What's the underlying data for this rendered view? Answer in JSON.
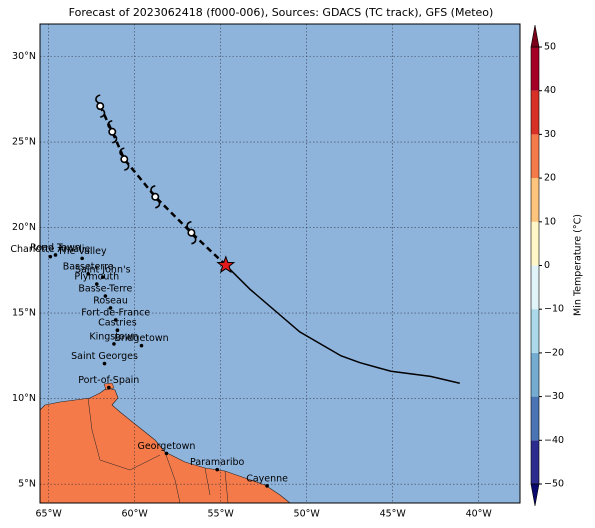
{
  "chart_data": {
    "type": "map",
    "title": "Forecast of 2023062418 (f000-006), Sources: GDACS (TC track), GFS (Meteo)",
    "xlim": [
      -65.5,
      -37.6
    ],
    "ylim": [
      3.9,
      31.9
    ],
    "xticks": [
      {
        "value": -65,
        "label": "65°W"
      },
      {
        "value": -60,
        "label": "60°W"
      },
      {
        "value": -55,
        "label": "55°W"
      },
      {
        "value": -50,
        "label": "50°W"
      },
      {
        "value": -45,
        "label": "45°W"
      },
      {
        "value": -40,
        "label": "40°W"
      }
    ],
    "yticks": [
      {
        "value": 5,
        "label": "5°N"
      },
      {
        "value": 10,
        "label": "10°N"
      },
      {
        "value": 15,
        "label": "15°N"
      },
      {
        "value": 20,
        "label": "20°N"
      },
      {
        "value": 25,
        "label": "25°N"
      },
      {
        "value": 30,
        "label": "30°N"
      }
    ],
    "grid": true,
    "ocean_color": "#8fb4dc",
    "land_color": "#f47a4a",
    "track": {
      "observed": {
        "lon": [
          -41.1,
          -42.8,
          -45.1,
          -46.9,
          -48.0,
          -49.2,
          -50.4,
          -53.3,
          -54.7
        ],
        "lat": [
          10.9,
          11.3,
          11.6,
          12.1,
          12.5,
          13.2,
          13.9,
          16.4,
          17.8
        ]
      },
      "forecast": {
        "lon": [
          -54.7,
          -56.7,
          -58.8,
          -60.6,
          -61.3,
          -62.0
        ],
        "lat": [
          17.8,
          19.7,
          21.8,
          24.0,
          25.6,
          27.1
        ]
      }
    },
    "cities": [
      {
        "name": "Road Town",
        "lon": -64.6,
        "lat": 18.4
      },
      {
        "name": "Charlotte Amalie",
        "lon": -64.9,
        "lat": 18.3
      },
      {
        "name": "The Valley",
        "lon": -63.05,
        "lat": 18.2
      },
      {
        "name": "Basseterre",
        "lon": -62.7,
        "lat": 17.3
      },
      {
        "name": "Saint John's",
        "lon": -61.85,
        "lat": 17.1
      },
      {
        "name": "Plymouth",
        "lon": -62.2,
        "lat": 16.7
      },
      {
        "name": "Basse-Terre",
        "lon": -61.7,
        "lat": 16.0
      },
      {
        "name": "Roseau",
        "lon": -61.4,
        "lat": 15.3
      },
      {
        "name": "Fort-de-France",
        "lon": -61.1,
        "lat": 14.6
      },
      {
        "name": "Castries",
        "lon": -61.0,
        "lat": 14.0
      },
      {
        "name": "Kingstown",
        "lon": -61.2,
        "lat": 13.2
      },
      {
        "name": "Bridgetown",
        "lon": -59.6,
        "lat": 13.1
      },
      {
        "name": "Saint Georges",
        "lon": -61.75,
        "lat": 12.05
      },
      {
        "name": "Port-of-Spain",
        "lon": -61.5,
        "lat": 10.65
      },
      {
        "name": "Georgetown",
        "lon": -58.15,
        "lat": 6.8
      },
      {
        "name": "Paramaribo",
        "lon": -55.2,
        "lat": 5.85
      },
      {
        "name": "Cayenne",
        "lon": -52.3,
        "lat": 4.9
      }
    ],
    "colorbar": {
      "label": "Min Temperature (°C)",
      "lim": [
        -50,
        50
      ],
      "ticks": [
        {
          "value": -50,
          "label": "−50"
        },
        {
          "value": -40,
          "label": "−40"
        },
        {
          "value": -30,
          "label": "−30"
        },
        {
          "value": -20,
          "label": "−20"
        },
        {
          "value": -10,
          "label": "−10"
        },
        0,
        10,
        20,
        30,
        40,
        50
      ],
      "colors": [
        "#2b2c8e",
        "#4a74b4",
        "#74add1",
        "#abd9e9",
        "#e0f3f8",
        "#fff6c8",
        "#fdc47d",
        "#f47a4a",
        "#d73027",
        "#a50026"
      ],
      "under": "#0a0a6e",
      "over": "#7a0019"
    }
  }
}
